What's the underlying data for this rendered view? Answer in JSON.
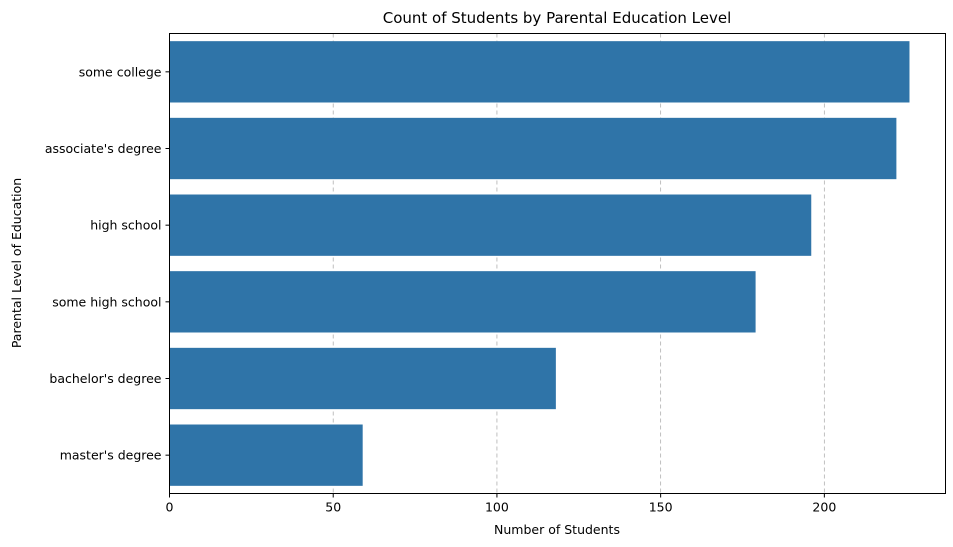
{
  "chart_data": {
    "type": "bar",
    "orientation": "horizontal",
    "title": "Count of Students by Parental Education Level",
    "xlabel": "Number of Students",
    "ylabel": "Parental Level of Education",
    "categories": [
      "some college",
      "associate's degree",
      "high school",
      "some high school",
      "bachelor's degree",
      "master's degree"
    ],
    "values": [
      226,
      222,
      196,
      179,
      118,
      59
    ],
    "xlim": [
      0,
      237
    ],
    "xticks": [
      0,
      50,
      100,
      150,
      200
    ],
    "grid": "x-dashed",
    "bar_color": "#2f74a8"
  }
}
